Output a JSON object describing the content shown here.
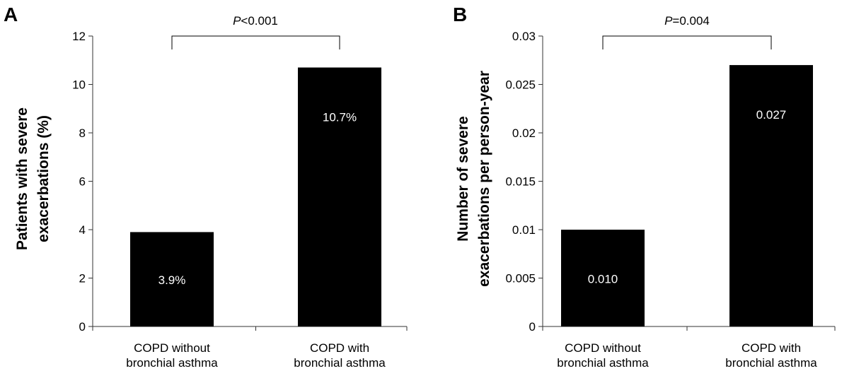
{
  "chart_data": [
    {
      "type": "bar",
      "panel": "A",
      "categories": [
        [
          "COPD without",
          "bronchial asthma"
        ],
        [
          "COPD with",
          "bronchial asthma"
        ]
      ],
      "values": [
        3.9,
        10.7
      ],
      "data_labels": [
        "3.9%",
        "10.7%"
      ],
      "ylabel": [
        "Patients with severe",
        "exacerbations (%)"
      ],
      "ylim": [
        0,
        12
      ],
      "yticks": [
        0,
        2,
        4,
        6,
        8,
        10,
        12
      ],
      "ytick_labels": [
        "0",
        "2",
        "4",
        "6",
        "8",
        "10",
        "12"
      ],
      "significance": {
        "p_italic": "P",
        "rest": "<0.001"
      },
      "bar_color": "#000000",
      "grid": false
    },
    {
      "type": "bar",
      "panel": "B",
      "categories": [
        [
          "COPD without",
          "bronchial asthma"
        ],
        [
          "COPD with",
          "bronchial asthma"
        ]
      ],
      "values": [
        0.01,
        0.027
      ],
      "data_labels": [
        "0.010",
        "0.027"
      ],
      "ylabel": [
        "Number of severe",
        "exacerbations per person-year"
      ],
      "ylim": [
        0,
        0.03
      ],
      "yticks": [
        0,
        0.005,
        0.01,
        0.015,
        0.02,
        0.025,
        0.03
      ],
      "ytick_labels": [
        "0",
        "0.005",
        "0.01",
        "0.015",
        "0.02",
        "0.025",
        "0.03"
      ],
      "significance": {
        "p_italic": "P",
        "rest": "=0.004"
      },
      "bar_color": "#000000",
      "grid": false
    }
  ]
}
